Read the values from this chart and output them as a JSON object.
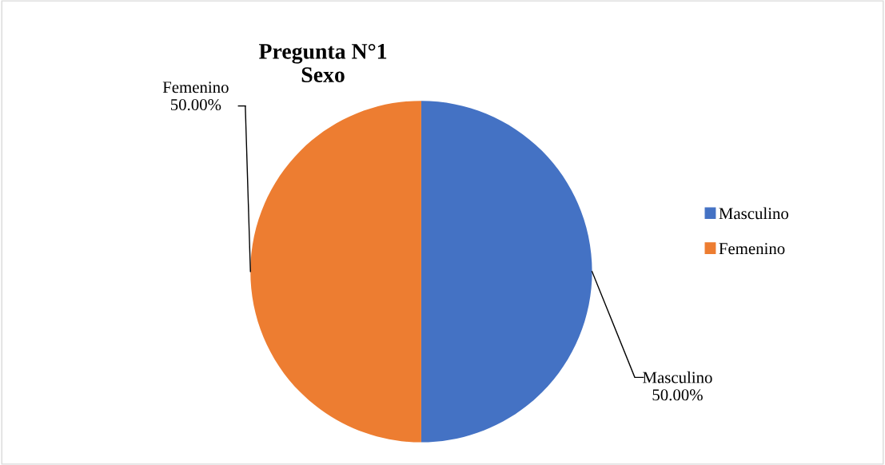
{
  "chart_data": {
    "type": "pie",
    "title": "Pregunta N°1\nSexo",
    "categories": [
      "Masculino",
      "Femenino"
    ],
    "values": [
      50,
      50
    ],
    "colors": [
      "#4472c4",
      "#ed7d31"
    ],
    "value_labels": [
      "50.00%",
      "50.00%"
    ],
    "legend": "right"
  }
}
